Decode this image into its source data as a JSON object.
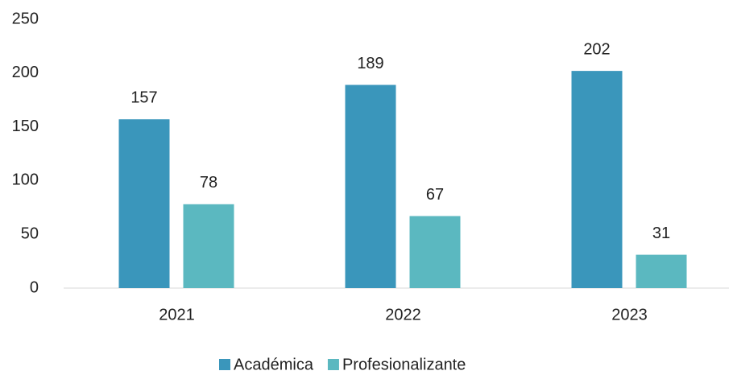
{
  "chart_data": {
    "type": "bar",
    "categories": [
      "2021",
      "2022",
      "2023"
    ],
    "series": [
      {
        "name": "Académica",
        "color": "#3a96bb",
        "values": [
          157,
          189,
          202
        ]
      },
      {
        "name": "Profesionalizante",
        "color": "#5bb8c0",
        "values": [
          78,
          67,
          31
        ]
      }
    ],
    "ylim": [
      0,
      250
    ],
    "yticks": [
      0,
      50,
      100,
      150,
      200,
      250
    ],
    "grid": false,
    "legend": "bottom"
  }
}
